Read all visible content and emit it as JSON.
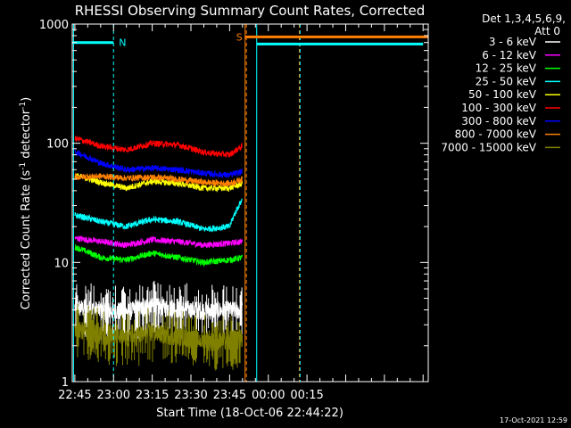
{
  "chart_data": {
    "type": "line",
    "title": "RHESSI Observing Summary Count Rates, Corrected",
    "xlabel": "Start Time (18-Oct-06 22:44:22)",
    "ylabel": "Corrected Count Rate (s⁻¹ detector⁻¹)",
    "ylabel_main": "Corrected Count Rate (s",
    "ylabel_mid": " detector",
    "ylabel_end": ")",
    "ylabel_sup": "-1",
    "yscale": "log",
    "ylim": [
      1,
      1000
    ],
    "xlim_minutes": [
      -1,
      137
    ],
    "x_ticks": [
      {
        "m": 0,
        "label": "22:45"
      },
      {
        "m": 15,
        "label": "23:00"
      },
      {
        "m": 30,
        "label": "23:15"
      },
      {
        "m": 45,
        "label": "23:30"
      },
      {
        "m": 60,
        "label": "23:45"
      },
      {
        "m": 75,
        "label": "00:00"
      },
      {
        "m": 90,
        "label": "00:15"
      }
    ],
    "y_ticks": [
      {
        "v": 1,
        "label": "1"
      },
      {
        "v": 10,
        "label": "10"
      },
      {
        "v": 100,
        "label": "100"
      },
      {
        "v": 1000,
        "label": "1000"
      }
    ],
    "legend_header_1": "Det 1,3,4,5,6,9,",
    "legend_header_2": "Att 0",
    "series": [
      {
        "name": "3 - 6 keV",
        "color": "#ffffff",
        "x": [
          0,
          10,
          20,
          30,
          40,
          50,
          60,
          65
        ],
        "y": [
          4.2,
          4.0,
          3.9,
          4.3,
          4.1,
          4.0,
          4.0,
          4.0
        ]
      },
      {
        "name": "6 - 12 keV",
        "color": "#ff00ff",
        "x": [
          0,
          10,
          20,
          30,
          40,
          50,
          60,
          65
        ],
        "y": [
          16,
          15,
          14,
          15.5,
          15,
          14,
          14.5,
          15
        ]
      },
      {
        "name": "12 - 25 keV",
        "color": "#00ff00",
        "x": [
          0,
          10,
          20,
          30,
          40,
          50,
          60,
          65
        ],
        "y": [
          13.5,
          11,
          10.5,
          12,
          11,
          10,
          10.5,
          11
        ]
      },
      {
        "name": "25 - 50 keV",
        "color": "#00ffff",
        "x": [
          0,
          10,
          20,
          30,
          40,
          50,
          60,
          65
        ],
        "y": [
          25,
          22,
          20,
          23,
          22,
          19,
          20,
          34
        ]
      },
      {
        "name": "50 - 100 keV",
        "color": "#ffff00",
        "x": [
          0,
          10,
          20,
          30,
          40,
          50,
          60,
          65
        ],
        "y": [
          54,
          47,
          42,
          48,
          46,
          42,
          42,
          46
        ]
      },
      {
        "name": "100 - 300 keV",
        "color": "#ff0000",
        "x": [
          0,
          10,
          20,
          30,
          40,
          50,
          60,
          65
        ],
        "y": [
          110,
          95,
          88,
          100,
          97,
          84,
          80,
          95
        ]
      },
      {
        "name": "300 - 800 keV",
        "color": "#0000ff",
        "x": [
          0,
          10,
          20,
          30,
          40,
          50,
          60,
          65
        ],
        "y": [
          85,
          68,
          60,
          62,
          60,
          56,
          54,
          58
        ]
      },
      {
        "name": "800 - 7000 keV",
        "color": "#ff8000",
        "x": [
          0,
          10,
          20,
          30,
          40,
          50,
          60,
          65
        ],
        "y": [
          52,
          53,
          51,
          52,
          50,
          47,
          46,
          50
        ]
      },
      {
        "name": "7000 - 15000 keV",
        "color": "#808000",
        "x": [
          0,
          10,
          20,
          30,
          40,
          50,
          60,
          65
        ],
        "y": [
          2.8,
          2.5,
          2.3,
          2.6,
          2.4,
          2.2,
          2.2,
          2.3
        ]
      }
    ],
    "intervals": [
      {
        "id": "night1",
        "label": "N",
        "color": "#00ffff",
        "x_start": -1,
        "x_end": 15,
        "y": 700
      },
      {
        "id": "saa",
        "label": "S",
        "color": "#ff8000",
        "x_start": 66,
        "x_end": 137,
        "y": 780
      },
      {
        "id": "night2",
        "label": "",
        "color": "#00ffff",
        "x_start": 70.5,
        "x_end": 135,
        "y": 680
      }
    ],
    "vertical_markers": [
      {
        "x": -0.5,
        "color": "#00ffff",
        "style": "solid"
      },
      {
        "x": 15,
        "color": "#00ffff",
        "style": "dashed"
      },
      {
        "x": 66,
        "color": "#ff8000",
        "style": "solid"
      },
      {
        "x": 66.5,
        "color": "#ff8000",
        "style": "dashed"
      },
      {
        "x": 70.5,
        "color": "#00ffff",
        "style": "solid"
      },
      {
        "x": 87,
        "color": "#ff8000",
        "style": "dashed"
      },
      {
        "x": 87.3,
        "color": "#00ffff",
        "style": "dashed"
      }
    ]
  },
  "footer": {
    "timestamp": "17-Oct-2021 12:59"
  }
}
